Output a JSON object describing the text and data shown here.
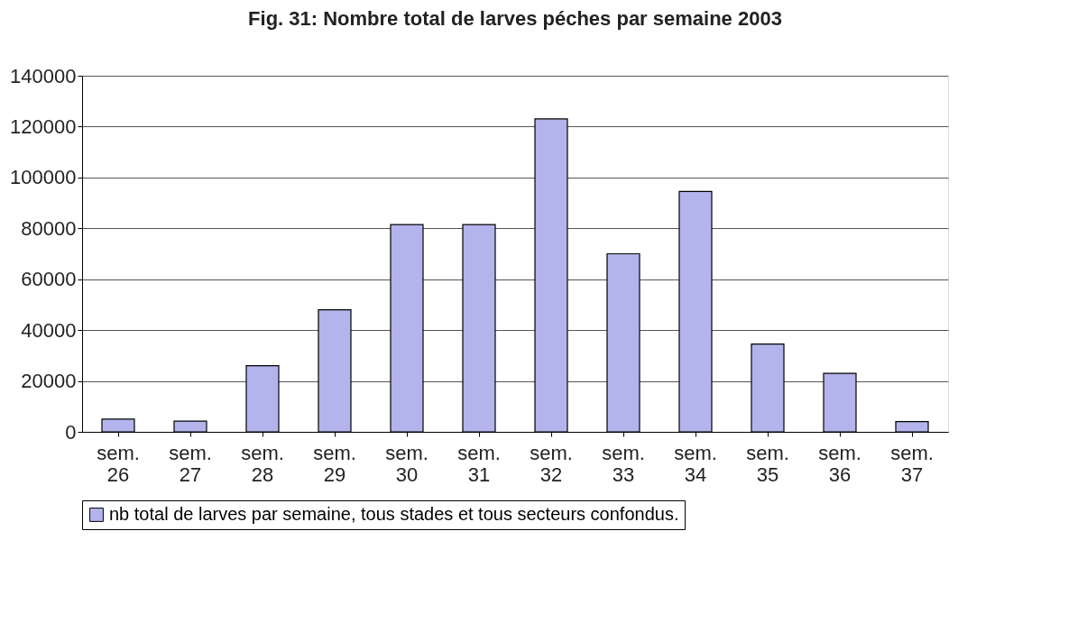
{
  "chart_data": {
    "type": "bar",
    "title": "Fig. 31: Nombre total de larves péches par semaine 2003",
    "categories": [
      "sem. 26",
      "sem. 27",
      "sem. 28",
      "sem. 29",
      "sem. 30",
      "sem. 31",
      "sem. 32",
      "sem. 33",
      "sem. 34",
      "sem. 35",
      "sem. 36",
      "sem. 37"
    ],
    "series": [
      {
        "name": "nb total de larves par semaine, tous stades et tous secteurs confondus.",
        "color": "#b4b4ec",
        "values": [
          5000,
          4200,
          26000,
          48000,
          81500,
          81500,
          123000,
          70000,
          94500,
          34500,
          23000,
          4000
        ]
      }
    ],
    "ylim": [
      0,
      140000
    ],
    "yticks": [
      0,
      20000,
      40000,
      60000,
      80000,
      100000,
      120000,
      140000
    ],
    "grid": "y",
    "legend": "bottom"
  }
}
